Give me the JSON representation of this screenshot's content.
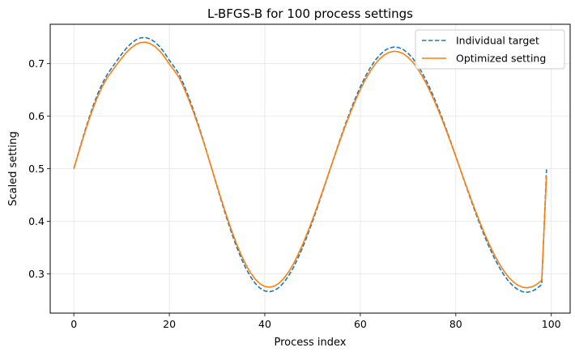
{
  "chart_data": {
    "type": "line",
    "title": "L-BFGS-B for 100 process settings",
    "xlabel": "Process index",
    "ylabel": "Scaled setting",
    "xlim": [
      -4.95,
      103.95
    ],
    "ylim": [
      0.225,
      0.775
    ],
    "xticks": [
      0,
      20,
      40,
      60,
      80,
      100
    ],
    "yticks": [
      0.3,
      0.4,
      0.5,
      0.6,
      0.7
    ],
    "ytick_labels": [
      "0.3",
      "0.4",
      "0.5",
      "0.6",
      "0.7"
    ],
    "grid": true,
    "legend_position": "top-right",
    "x": [
      0,
      1,
      2,
      3,
      4,
      5,
      6,
      7,
      8,
      9,
      10,
      11,
      12,
      13,
      14,
      15,
      16,
      17,
      18,
      19,
      20,
      21,
      22,
      23,
      24,
      25,
      26,
      27,
      28,
      29,
      30,
      31,
      32,
      33,
      34,
      35,
      36,
      37,
      38,
      39,
      40,
      41,
      42,
      43,
      44,
      45,
      46,
      47,
      48,
      49,
      50,
      51,
      52,
      53,
      54,
      55,
      56,
      57,
      58,
      59,
      60,
      61,
      62,
      63,
      64,
      65,
      66,
      67,
      68,
      69,
      70,
      71,
      72,
      73,
      74,
      75,
      76,
      77,
      78,
      79,
      80,
      81,
      82,
      83,
      84,
      85,
      86,
      87,
      88,
      89,
      90,
      91,
      92,
      93,
      94,
      95,
      96,
      97,
      98,
      99
    ],
    "series": [
      {
        "name": "Individual target",
        "style": "dashed",
        "color": "#1f77b4",
        "values": [
          0.5,
          0.5316,
          0.5624,
          0.5916,
          0.6185,
          0.6425,
          0.6629,
          0.6794,
          0.6927,
          0.7055,
          0.718,
          0.7293,
          0.7386,
          0.7454,
          0.7492,
          0.7497,
          0.747,
          0.7411,
          0.7322,
          0.7206,
          0.7066,
          0.6941,
          0.6806,
          0.6608,
          0.6378,
          0.6131,
          0.586,
          0.5572,
          0.5272,
          0.4965,
          0.4658,
          0.4355,
          0.4063,
          0.3788,
          0.3534,
          0.3306,
          0.3109,
          0.2944,
          0.2815,
          0.2724,
          0.2672,
          0.2657,
          0.268,
          0.2739,
          0.2834,
          0.2962,
          0.3121,
          0.3308,
          0.3518,
          0.375,
          0.3998,
          0.4259,
          0.4529,
          0.4804,
          0.508,
          0.5353,
          0.562,
          0.5877,
          0.6121,
          0.6349,
          0.6558,
          0.6746,
          0.691,
          0.7049,
          0.716,
          0.7243,
          0.7295,
          0.7317,
          0.7308,
          0.7268,
          0.7198,
          0.71,
          0.6973,
          0.682,
          0.6644,
          0.6446,
          0.623,
          0.5998,
          0.5753,
          0.5498,
          0.5237,
          0.4973,
          0.4709,
          0.4449,
          0.4196,
          0.3952,
          0.3721,
          0.3507,
          0.3312,
          0.3138,
          0.2988,
          0.2863,
          0.2766,
          0.2697,
          0.2657,
          0.2647,
          0.2667,
          0.2717,
          0.2796,
          0.4985
        ]
      },
      {
        "name": "Optimized setting",
        "style": "solid",
        "color": "#ff7f0e",
        "values": [
          0.5,
          0.5305,
          0.5602,
          0.5884,
          0.6144,
          0.6375,
          0.6572,
          0.6732,
          0.6859,
          0.6982,
          0.7102,
          0.7211,
          0.7301,
          0.7366,
          0.7403,
          0.7408,
          0.7382,
          0.7325,
          0.7239,
          0.7127,
          0.6992,
          0.6872,
          0.6742,
          0.6552,
          0.633,
          0.6092,
          0.5831,
          0.5553,
          0.5264,
          0.4968,
          0.4672,
          0.438,
          0.4098,
          0.3833,
          0.3588,
          0.3368,
          0.3178,
          0.3019,
          0.2895,
          0.2807,
          0.2757,
          0.2743,
          0.2765,
          0.2822,
          0.2914,
          0.3037,
          0.319,
          0.3371,
          0.3573,
          0.3797,
          0.4036,
          0.4288,
          0.4548,
          0.4813,
          0.5079,
          0.5342,
          0.56,
          0.5848,
          0.6083,
          0.6303,
          0.6505,
          0.6686,
          0.6844,
          0.6978,
          0.7085,
          0.7165,
          0.7215,
          0.7236,
          0.7227,
          0.7189,
          0.7121,
          0.7027,
          0.6904,
          0.6757,
          0.6587,
          0.6396,
          0.6188,
          0.5964,
          0.5728,
          0.5482,
          0.523,
          0.4975,
          0.4721,
          0.447,
          0.4226,
          0.3991,
          0.3768,
          0.3562,
          0.3374,
          0.3206,
          0.3061,
          0.2941,
          0.2847,
          0.2781,
          0.2742,
          0.2732,
          0.2752,
          0.28,
          0.2876,
          0.486
        ]
      }
    ]
  }
}
